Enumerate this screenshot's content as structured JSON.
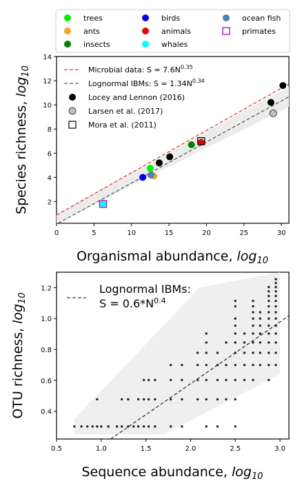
{
  "chart_data": [
    {
      "type": "scatter",
      "xlabel": "Organismal abundance, log10",
      "ylabel": "Species richness, log10",
      "xlim": [
        0,
        31
      ],
      "ylim": [
        0.2,
        14
      ],
      "xticks": [
        0,
        5,
        10,
        15,
        20,
        25,
        30
      ],
      "yticks": [
        2,
        4,
        6,
        8,
        10,
        12,
        14
      ],
      "legend_position": "top-left",
      "top_legend": [
        {
          "label": "trees",
          "color": "#00ee00",
          "marker": "circle"
        },
        {
          "label": "birds",
          "color": "#0000ee",
          "marker": "circle"
        },
        {
          "label": "ocean fish",
          "color": "#4682b4",
          "marker": "circle"
        },
        {
          "label": "ants",
          "color": "#f5a623",
          "marker": "circle"
        },
        {
          "label": "animals",
          "color": "#ee0000",
          "marker": "circle"
        },
        {
          "label": "primates",
          "color": "#c000c0",
          "marker": "open-square"
        },
        {
          "label": "insects",
          "color": "#008000",
          "marker": "circle"
        },
        {
          "label": "whales",
          "color": "#00ffff",
          "marker": "circle"
        }
      ],
      "inner_legend": [
        {
          "label": "Microbial data: S = 7.6N",
          "sup": "0.35",
          "style": "red-dashed"
        },
        {
          "label": "Lognormal IBMs: S = 1.34N",
          "sup": "0.34",
          "style": "black-dashed"
        },
        {
          "label": "Locey and Lennon (2016)",
          "style": "black-dot"
        },
        {
          "label": "Larsen et al. (2017)",
          "style": "gray-dot"
        },
        {
          "label": "Mora et al. (2011)",
          "style": "open-square"
        }
      ],
      "lines": [
        {
          "name": "Microbial data",
          "color": "#ff0000",
          "intercept": 0.88,
          "slope": 0.35
        },
        {
          "name": "Lognormal IBMs",
          "color": "#333333",
          "intercept": 0.127,
          "slope": 0.34
        }
      ],
      "band": {
        "lower_intercept": -0.7,
        "upper_intercept": 0.95,
        "slope": 0.34,
        "color": "#ececec"
      },
      "points": [
        {
          "x": 30.2,
          "y": 11.6,
          "color": "#000000",
          "group": "Locey and Lennon (2016)"
        },
        {
          "x": 28.6,
          "y": 10.2,
          "color": "#000000",
          "group": "Locey and Lennon (2016)"
        },
        {
          "x": 15.1,
          "y": 5.7,
          "color": "#000000",
          "group": "Locey and Lennon (2016)"
        },
        {
          "x": 13.7,
          "y": 5.2,
          "color": "#000000",
          "group": "Locey and Lennon (2016)"
        },
        {
          "x": 28.9,
          "y": 9.3,
          "color": "#c0c0c0",
          "group": "Larsen et al. (2017)"
        },
        {
          "x": 12.5,
          "y": 4.75,
          "color": "#00ee00",
          "group": "trees"
        },
        {
          "x": 13.0,
          "y": 4.1,
          "color": "#f5a623",
          "group": "ants"
        },
        {
          "x": 11.5,
          "y": 4.0,
          "color": "#0000ee",
          "group": "birds"
        },
        {
          "x": 12.6,
          "y": 4.2,
          "color": "#4682b4",
          "group": "ocean fish"
        },
        {
          "x": 18.0,
          "y": 6.7,
          "color": "#008000",
          "group": "insects"
        },
        {
          "x": 19.3,
          "y": 6.9,
          "color": "#ee0000",
          "group": "animals"
        },
        {
          "x": 6.2,
          "y": 1.8,
          "color": "#00ffff",
          "group": "whales"
        },
        {
          "x": 6.2,
          "y": 1.8,
          "color": "#c000c0",
          "group": "primates",
          "marker": "open-square"
        },
        {
          "x": 19.3,
          "y": 7.0,
          "color": "#000000",
          "group": "Mora et al. (2011)",
          "marker": "open-square"
        }
      ]
    },
    {
      "type": "scatter",
      "xlabel": "Sequence abundance, log10",
      "ylabel": "OTU richness, log10",
      "xlim": [
        0.5,
        3.1
      ],
      "ylim": [
        0.22,
        1.3
      ],
      "xticks": [
        0.5,
        1.0,
        1.5,
        2.0,
        2.5,
        3.0
      ],
      "yticks": [
        0.4,
        0.6,
        0.8,
        1.0,
        1.2
      ],
      "legend_position": "top-left",
      "legend": [
        {
          "label": "Lognormal IBMs:",
          "line2": "S = 0.6*N",
          "sup": "0.4",
          "style": "black-dashed"
        }
      ],
      "fit_line": {
        "intercept": -0.222,
        "slope": 0.4
      },
      "band_polygon": [
        [
          0.7,
          0.35
        ],
        [
          2.1,
          1.2
        ],
        [
          3.0,
          1.3
        ],
        [
          3.0,
          0.64
        ],
        [
          1.7,
          0.25
        ],
        [
          0.7,
          0.25
        ]
      ],
      "xs": [
        0.699,
        0.778,
        0.845,
        0.903,
        0.954,
        1.0,
        1.079,
        1.176,
        1.23,
        1.301,
        1.362,
        1.415,
        1.477,
        1.531,
        1.602,
        1.699,
        1.778,
        1.903,
        2.0,
        2.079,
        2.176,
        2.301,
        2.398,
        2.5,
        2.602,
        2.699,
        2.778,
        2.875,
        2.954
      ],
      "ys": [
        0.301,
        0.477,
        0.602,
        0.699,
        0.778,
        0.845,
        0.903,
        0.954,
        1.0,
        1.041,
        1.079,
        1.114,
        1.146,
        1.176,
        1.204,
        1.23,
        1.255
      ],
      "points": [
        [
          0.699,
          0.301
        ],
        [
          0.778,
          0.301
        ],
        [
          0.845,
          0.301
        ],
        [
          0.903,
          0.301
        ],
        [
          0.954,
          0.301
        ],
        [
          1.0,
          0.301
        ],
        [
          1.079,
          0.301
        ],
        [
          1.176,
          0.301
        ],
        [
          1.23,
          0.301
        ],
        [
          1.301,
          0.301
        ],
        [
          1.362,
          0.301
        ],
        [
          1.415,
          0.301
        ],
        [
          1.477,
          0.301
        ],
        [
          1.531,
          0.301
        ],
        [
          1.602,
          0.301
        ],
        [
          1.778,
          0.301
        ],
        [
          1.903,
          0.301
        ],
        [
          2.176,
          0.301
        ],
        [
          2.301,
          0.301
        ],
        [
          2.5,
          0.301
        ],
        [
          0.954,
          0.477
        ],
        [
          1.23,
          0.477
        ],
        [
          1.301,
          0.477
        ],
        [
          1.415,
          0.477
        ],
        [
          1.477,
          0.477
        ],
        [
          1.531,
          0.477
        ],
        [
          1.602,
          0.477
        ],
        [
          1.778,
          0.477
        ],
        [
          1.903,
          0.477
        ],
        [
          2.079,
          0.477
        ],
        [
          2.176,
          0.477
        ],
        [
          2.301,
          0.477
        ],
        [
          2.398,
          0.477
        ],
        [
          2.5,
          0.477
        ],
        [
          1.477,
          0.602
        ],
        [
          1.531,
          0.602
        ],
        [
          1.602,
          0.602
        ],
        [
          1.778,
          0.602
        ],
        [
          1.903,
          0.602
        ],
        [
          2.079,
          0.602
        ],
        [
          2.176,
          0.602
        ],
        [
          2.301,
          0.602
        ],
        [
          2.398,
          0.602
        ],
        [
          2.5,
          0.602
        ],
        [
          2.602,
          0.602
        ],
        [
          2.699,
          0.602
        ],
        [
          2.875,
          0.602
        ],
        [
          1.778,
          0.699
        ],
        [
          1.903,
          0.699
        ],
        [
          2.079,
          0.699
        ],
        [
          2.176,
          0.699
        ],
        [
          2.301,
          0.699
        ],
        [
          2.398,
          0.699
        ],
        [
          2.5,
          0.699
        ],
        [
          2.602,
          0.699
        ],
        [
          2.699,
          0.699
        ],
        [
          2.778,
          0.699
        ],
        [
          2.875,
          0.699
        ],
        [
          2.954,
          0.699
        ],
        [
          2.079,
          0.778
        ],
        [
          2.176,
          0.778
        ],
        [
          2.301,
          0.778
        ],
        [
          2.5,
          0.778
        ],
        [
          2.602,
          0.778
        ],
        [
          2.699,
          0.778
        ],
        [
          2.778,
          0.778
        ],
        [
          2.875,
          0.778
        ],
        [
          2.954,
          0.778
        ],
        [
          2.176,
          0.845
        ],
        [
          2.398,
          0.845
        ],
        [
          2.5,
          0.845
        ],
        [
          2.602,
          0.845
        ],
        [
          2.699,
          0.845
        ],
        [
          2.778,
          0.845
        ],
        [
          2.875,
          0.845
        ],
        [
          2.954,
          0.845
        ],
        [
          2.176,
          0.903
        ],
        [
          2.5,
          0.903
        ],
        [
          2.602,
          0.903
        ],
        [
          2.699,
          0.903
        ],
        [
          2.778,
          0.903
        ],
        [
          2.875,
          0.903
        ],
        [
          2.954,
          0.903
        ],
        [
          2.5,
          0.954
        ],
        [
          2.699,
          0.954
        ],
        [
          2.778,
          0.954
        ],
        [
          2.875,
          0.954
        ],
        [
          2.954,
          0.954
        ],
        [
          2.5,
          1.0
        ],
        [
          2.699,
          1.0
        ],
        [
          2.778,
          1.0
        ],
        [
          2.875,
          1.0
        ],
        [
          2.954,
          1.0
        ],
        [
          2.699,
          1.041
        ],
        [
          2.778,
          1.041
        ],
        [
          2.875,
          1.041
        ],
        [
          2.954,
          1.041
        ],
        [
          2.5,
          1.079
        ],
        [
          2.699,
          1.079
        ],
        [
          2.875,
          1.079
        ],
        [
          2.954,
          1.079
        ],
        [
          2.5,
          1.114
        ],
        [
          2.699,
          1.114
        ],
        [
          2.875,
          1.114
        ],
        [
          2.954,
          1.114
        ],
        [
          2.875,
          1.146
        ],
        [
          2.954,
          1.146
        ],
        [
          2.875,
          1.176
        ],
        [
          2.954,
          1.176
        ],
        [
          2.875,
          1.204
        ],
        [
          2.954,
          1.204
        ],
        [
          2.954,
          1.23
        ],
        [
          2.954,
          1.255
        ]
      ]
    }
  ]
}
